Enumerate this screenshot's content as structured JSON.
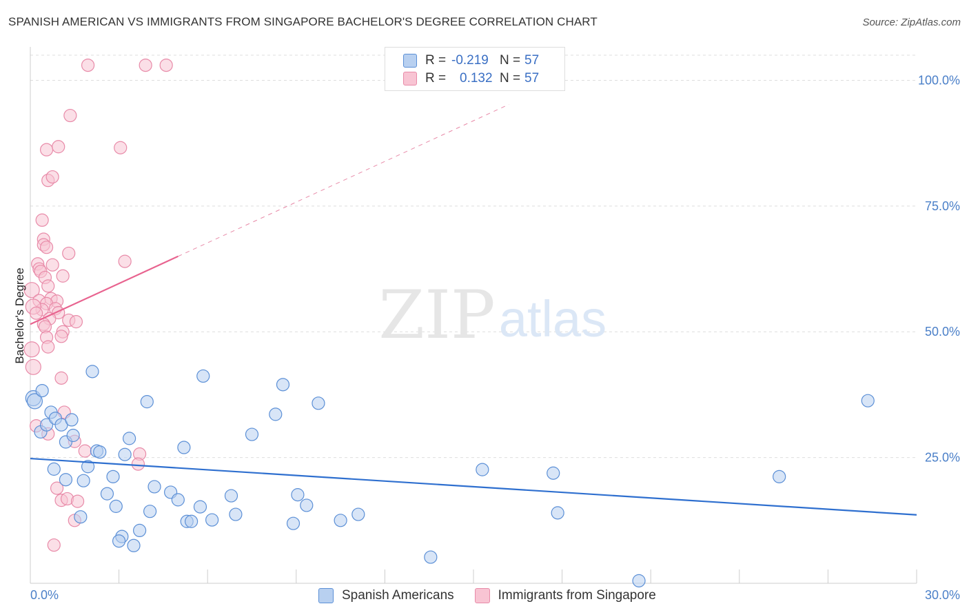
{
  "title": "SPANISH AMERICAN VS IMMIGRANTS FROM SINGAPORE BACHELOR'S DEGREE CORRELATION CHART",
  "source": "Source: ZipAtlas.com",
  "watermark": {
    "zip": "ZIP",
    "atlas": "atlas"
  },
  "colors": {
    "blue_fill": "#b8d0f0",
    "blue_stroke": "#5b8fd6",
    "blue_line": "#2e6fcf",
    "pink_fill": "#f8c4d3",
    "pink_stroke": "#e88aa8",
    "pink_line": "#e8638f",
    "grid": "#dddddd",
    "axis_text": "#4a7fc8"
  },
  "legend": {
    "r_label": "R =",
    "n_label": "N =",
    "series": [
      {
        "name": "Spanish Americans",
        "r": "-0.219",
        "n": "57"
      },
      {
        "name": "Immigrants from Singapore",
        "r": "0.132",
        "n": "57"
      }
    ]
  },
  "chart_data": {
    "type": "scatter",
    "title": "SPANISH AMERICAN VS IMMIGRANTS FROM SINGAPORE BACHELOR'S DEGREE CORRELATION CHART",
    "xlabel": "",
    "ylabel": "Bachelor's Degree",
    "xlim": [
      0,
      30
    ],
    "ylim": [
      0,
      105
    ],
    "x_tick_labels": [
      "0.0%",
      "30.0%"
    ],
    "y_ticks": [
      25,
      50,
      75,
      100
    ],
    "y_tick_labels": [
      "25.0%",
      "50.0%",
      "75.0%",
      "100.0%"
    ],
    "series": [
      {
        "name": "Spanish Americans",
        "color": "blue",
        "trend": {
          "x0": 0,
          "y0": 24.8,
          "x1": 30,
          "y1": 13.6
        },
        "points": [
          [
            0.1,
            36.8
          ],
          [
            0.15,
            36.2
          ],
          [
            0.4,
            38.3
          ],
          [
            0.35,
            30.1
          ],
          [
            0.55,
            31.5
          ],
          [
            0.7,
            34.0
          ],
          [
            0.85,
            32.8
          ],
          [
            1.05,
            31.5
          ],
          [
            0.8,
            22.7
          ],
          [
            1.2,
            28.1
          ],
          [
            1.4,
            32.5
          ],
          [
            1.45,
            29.4
          ],
          [
            1.2,
            20.6
          ],
          [
            1.8,
            20.4
          ],
          [
            2.1,
            42.1
          ],
          [
            2.25,
            26.3
          ],
          [
            2.35,
            26.1
          ],
          [
            1.95,
            23.2
          ],
          [
            1.7,
            13.2
          ],
          [
            2.6,
            17.8
          ],
          [
            2.8,
            21.2
          ],
          [
            2.9,
            15.3
          ],
          [
            3.1,
            9.3
          ],
          [
            3.0,
            8.4
          ],
          [
            3.2,
            25.6
          ],
          [
            3.35,
            28.8
          ],
          [
            3.5,
            7.5
          ],
          [
            3.7,
            10.5
          ],
          [
            3.95,
            36.1
          ],
          [
            4.05,
            14.3
          ],
          [
            4.2,
            19.2
          ],
          [
            4.75,
            18.1
          ],
          [
            5.0,
            16.6
          ],
          [
            5.2,
            27.0
          ],
          [
            5.3,
            12.3
          ],
          [
            5.45,
            12.3
          ],
          [
            5.75,
            15.2
          ],
          [
            5.85,
            41.2
          ],
          [
            6.15,
            12.6
          ],
          [
            6.8,
            17.4
          ],
          [
            6.95,
            13.7
          ],
          [
            7.5,
            29.6
          ],
          [
            8.3,
            33.6
          ],
          [
            8.55,
            39.5
          ],
          [
            8.9,
            11.9
          ],
          [
            9.05,
            17.6
          ],
          [
            9.35,
            15.5
          ],
          [
            9.75,
            35.8
          ],
          [
            10.5,
            12.5
          ],
          [
            11.1,
            13.7
          ],
          [
            13.55,
            5.2
          ],
          [
            15.3,
            22.6
          ],
          [
            17.7,
            21.9
          ],
          [
            17.85,
            14.0
          ],
          [
            20.6,
            0.5
          ],
          [
            25.35,
            21.2
          ],
          [
            28.35,
            36.3
          ]
        ]
      },
      {
        "name": "Immigrants from Singapore",
        "color": "pink",
        "trend": {
          "x0": 0,
          "y0": 51.5,
          "x1": 5.0,
          "y1": 65.0
        },
        "trend_dashed": {
          "x0": 5.0,
          "y0": 65.0,
          "x1": 16.2,
          "y1": 95.2
        },
        "points": [
          [
            1.95,
            103.0
          ],
          [
            3.9,
            103.0
          ],
          [
            4.6,
            103.0
          ],
          [
            1.35,
            93.0
          ],
          [
            0.55,
            86.2
          ],
          [
            0.95,
            86.8
          ],
          [
            3.05,
            86.6
          ],
          [
            0.6,
            80.1
          ],
          [
            0.75,
            80.8
          ],
          [
            0.4,
            72.2
          ],
          [
            0.45,
            68.4
          ],
          [
            0.45,
            67.3
          ],
          [
            0.55,
            66.8
          ],
          [
            1.3,
            65.6
          ],
          [
            3.2,
            64.0
          ],
          [
            0.25,
            63.5
          ],
          [
            0.3,
            62.5
          ],
          [
            0.75,
            63.3
          ],
          [
            0.35,
            62.0
          ],
          [
            0.5,
            60.8
          ],
          [
            1.1,
            61.1
          ],
          [
            0.6,
            59.1
          ],
          [
            0.05,
            58.3
          ],
          [
            0.7,
            56.6
          ],
          [
            0.9,
            56.1
          ],
          [
            0.3,
            56.2
          ],
          [
            0.55,
            55.6
          ],
          [
            0.4,
            54.4
          ],
          [
            0.1,
            55.0
          ],
          [
            0.85,
            54.6
          ],
          [
            0.95,
            53.8
          ],
          [
            1.3,
            52.3
          ],
          [
            0.2,
            53.7
          ],
          [
            0.65,
            52.6
          ],
          [
            1.55,
            52.0
          ],
          [
            0.45,
            51.5
          ],
          [
            0.5,
            51.0
          ],
          [
            1.1,
            50.0
          ],
          [
            1.05,
            49.1
          ],
          [
            0.55,
            48.9
          ],
          [
            0.6,
            47.0
          ],
          [
            0.05,
            46.5
          ],
          [
            0.1,
            43.0
          ],
          [
            1.05,
            40.8
          ],
          [
            1.15,
            34.0
          ],
          [
            0.6,
            29.7
          ],
          [
            1.5,
            28.2
          ],
          [
            1.85,
            26.3
          ],
          [
            3.7,
            25.7
          ],
          [
            3.65,
            23.7
          ],
          [
            0.9,
            18.9
          ],
          [
            1.05,
            16.5
          ],
          [
            1.25,
            16.8
          ],
          [
            1.6,
            16.3
          ],
          [
            1.5,
            12.5
          ],
          [
            0.8,
            7.6
          ],
          [
            0.2,
            31.3
          ]
        ]
      }
    ]
  }
}
